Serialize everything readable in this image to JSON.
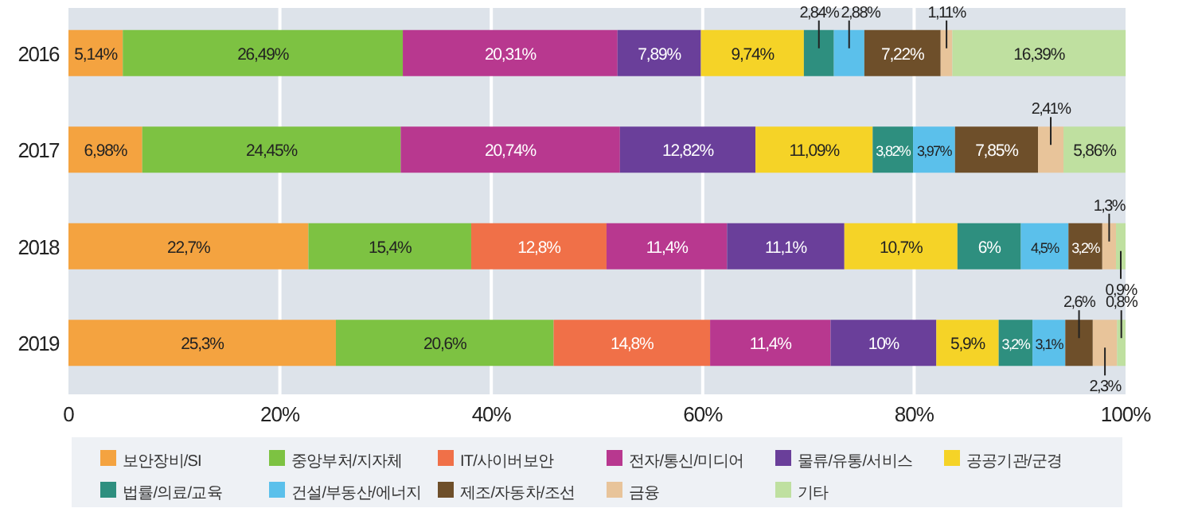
{
  "chart_data": {
    "type": "bar",
    "orientation": "horizontal",
    "stacked": true,
    "categories": [
      "2016",
      "2017",
      "2018",
      "2019"
    ],
    "xlim": [
      0,
      100
    ],
    "xticks": [
      0,
      {
        "value": 20,
        "label": "20%"
      },
      {
        "value": 40,
        "label": "40%"
      },
      {
        "value": 60,
        "label": "60%"
      },
      {
        "value": 80,
        "label": "80%"
      },
      {
        "value": 100,
        "label": "100%"
      }
    ],
    "grid": "x",
    "legend": "bottom",
    "series": [
      {
        "name": "보안장비/SI",
        "color": "#f4a340",
        "values": [
          5.14,
          6.98,
          22.7,
          25.3
        ],
        "value_labels": [
          "5,14%",
          "6,98%",
          "22,7%",
          "25,3%"
        ]
      },
      {
        "name": "중앙부처/지자체",
        "color": "#7dc242",
        "values": [
          26.49,
          24.45,
          15.4,
          20.6
        ],
        "value_labels": [
          "26,49%",
          "24,45%",
          "15,4%",
          "20,6%"
        ]
      },
      {
        "name": "IT/사이버보안",
        "color": "#f07048",
        "values": [
          null,
          null,
          12.8,
          14.8
        ],
        "value_labels": [
          null,
          null,
          "12,8%",
          "14,8%"
        ]
      },
      {
        "name": "전자/통신/미디어",
        "color": "#b8388f",
        "values": [
          20.31,
          20.74,
          11.4,
          11.4
        ],
        "value_labels": [
          "20,31%",
          "20,74%",
          "11,4%",
          "11,4%"
        ]
      },
      {
        "name": "물류/유통/서비스",
        "color": "#6a3f9a",
        "values": [
          7.89,
          12.82,
          11.1,
          10
        ],
        "value_labels": [
          "7,89%",
          "12,82%",
          "11,1%",
          "10%"
        ]
      },
      {
        "name": "공공기관/군경",
        "color": "#f5d327",
        "values": [
          9.74,
          11.09,
          10.7,
          5.9
        ],
        "value_labels": [
          "9,74%",
          "11,09%",
          "10,7%",
          "5,9%"
        ]
      },
      {
        "name": "법률/의료/교육",
        "color": "#2e8f7f",
        "values": [
          2.84,
          3.82,
          6,
          3.2
        ],
        "value_labels": [
          "2,84%",
          "3,82%",
          "6%",
          "3,2%"
        ]
      },
      {
        "name": "건설/부동산/에너지",
        "color": "#5bc0eb",
        "values": [
          2.88,
          3.97,
          4.5,
          3.1
        ],
        "value_labels": [
          "2,88%",
          "3,97%",
          "4,5%",
          "3,1%"
        ]
      },
      {
        "name": "제조/자동차/조선",
        "color": "#6e4f2a",
        "values": [
          7.22,
          7.85,
          3.2,
          2.6
        ],
        "value_labels": [
          "7,22%",
          "7,85%",
          "3,2%",
          "2,6%"
        ]
      },
      {
        "name": "금융",
        "color": "#e8c49a",
        "values": [
          1.11,
          2.41,
          1.3,
          2.3
        ],
        "value_labels": [
          "1,11%",
          "2,41%",
          "1,3%",
          "2,3%"
        ]
      },
      {
        "name": "기타",
        "color": "#bfe0a0",
        "values": [
          16.39,
          5.86,
          0.9,
          0.8
        ],
        "value_labels": [
          "16,39%",
          "5,86%",
          "0,9%",
          "0,8%"
        ]
      }
    ]
  }
}
